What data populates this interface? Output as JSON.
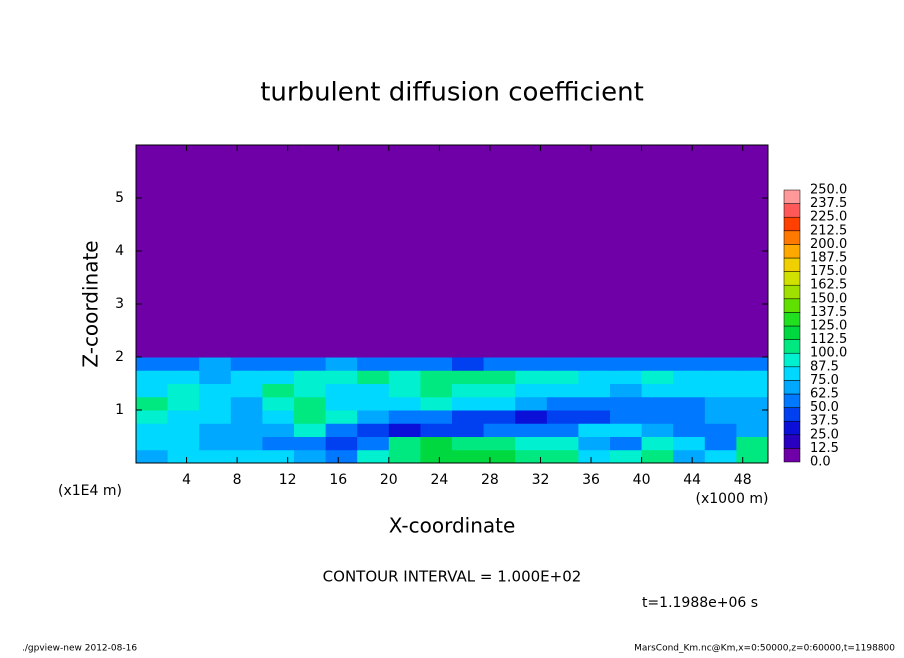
{
  "chart_data": {
    "type": "contour",
    "title": "turbulent diffusion coefficient",
    "x_label": "X-coordinate",
    "y_label": "Z-coordinate",
    "x_unit": "(x1000 m)",
    "y_unit": "(x1E4 m)",
    "annotation": "CONTOUR INTERVAL = 1.000E+02",
    "time_label": "t=1.1988e+06 s",
    "footer_left": "./gpview-new  2012-08-16",
    "footer_right": "MarsCond_Km.nc@Km,x=0:50000,z=0:60000,t=1198800",
    "xlim": [
      0,
      50
    ],
    "ylim": [
      0,
      6
    ],
    "xticks": [
      4,
      8,
      12,
      16,
      20,
      24,
      28,
      32,
      36,
      40,
      44,
      48
    ],
    "yticks": [
      1,
      2,
      3,
      4,
      5
    ],
    "x_edges": [
      0,
      2.5,
      5,
      7.5,
      10,
      12.5,
      15,
      17.5,
      20,
      22.5,
      25,
      27.5,
      30,
      32.5,
      35,
      37.5,
      40,
      42.5,
      45,
      47.5,
      50
    ],
    "y_edges": [
      0,
      0.25,
      0.5,
      0.75,
      1,
      1.25,
      1.5,
      1.75,
      2,
      6
    ],
    "values": [
      [
        70,
        75,
        80,
        85,
        80,
        70,
        60,
        90,
        110,
        115,
        120,
        115,
        110,
        100,
        80,
        90,
        110,
        70,
        80,
        110
      ],
      [
        75,
        80,
        70,
        65,
        60,
        50,
        45,
        60,
        100,
        115,
        110,
        100,
        95,
        90,
        70,
        60,
        95,
        80,
        60,
        100
      ],
      [
        80,
        75,
        70,
        65,
        70,
        90,
        60,
        40,
        35,
        40,
        45,
        50,
        55,
        60,
        75,
        80,
        70,
        60,
        55,
        70
      ],
      [
        90,
        85,
        75,
        70,
        80,
        100,
        90,
        70,
        60,
        50,
        45,
        40,
        35,
        40,
        45,
        50,
        55,
        60,
        65,
        70
      ],
      [
        100,
        95,
        80,
        70,
        90,
        110,
        80,
        75,
        80,
        90,
        85,
        80,
        70,
        60,
        55,
        50,
        55,
        60,
        65,
        70
      ],
      [
        85,
        90,
        80,
        75,
        100,
        95,
        80,
        85,
        90,
        100,
        95,
        90,
        85,
        80,
        75,
        70,
        75,
        80,
        75,
        80
      ],
      [
        80,
        85,
        70,
        75,
        80,
        90,
        95,
        100,
        90,
        100,
        105,
        100,
        95,
        90,
        85,
        85,
        90,
        85,
        80,
        85
      ],
      [
        50,
        60,
        65,
        60,
        55,
        60,
        70,
        60,
        55,
        50,
        45,
        50,
        55,
        60,
        50,
        55,
        60,
        55,
        50,
        55
      ],
      [
        5,
        5,
        5,
        5,
        5,
        5,
        5,
        5,
        5,
        5,
        5,
        5,
        5,
        5,
        5,
        5,
        5,
        5,
        5,
        5
      ]
    ],
    "levels": [
      {
        "value": 0,
        "label": "0.0"
      },
      {
        "value": 12.5,
        "label": "12.5"
      },
      {
        "value": 25,
        "label": "25.0"
      },
      {
        "value": 37.5,
        "label": "37.5"
      },
      {
        "value": 50,
        "label": "50.0"
      },
      {
        "value": 62.5,
        "label": "62.5"
      },
      {
        "value": 75,
        "label": "75.0"
      },
      {
        "value": 87.5,
        "label": "87.5"
      },
      {
        "value": 100,
        "label": "100.0"
      },
      {
        "value": 112.5,
        "label": "112.5"
      },
      {
        "value": 125,
        "label": "125.0"
      },
      {
        "value": 137.5,
        "label": "137.5"
      },
      {
        "value": 150,
        "label": "150.0"
      },
      {
        "value": 162.5,
        "label": "162.5"
      },
      {
        "value": 175,
        "label": "175.0"
      },
      {
        "value": 187.5,
        "label": "187.5"
      },
      {
        "value": 200,
        "label": "200.0"
      },
      {
        "value": 212.5,
        "label": "212.5"
      },
      {
        "value": 225,
        "label": "225.0"
      },
      {
        "value": 237.5,
        "label": "237.5"
      },
      {
        "value": 250,
        "label": "250.0"
      }
    ],
    "colors": [
      "#6f00a8",
      "#2a00c0",
      "#0a10d8",
      "#0040f0",
      "#0078ff",
      "#00a8ff",
      "#00d8ff",
      "#00f0d0",
      "#00e880",
      "#00d840",
      "#20e020",
      "#60e000",
      "#a0e000",
      "#d0e000",
      "#f0d000",
      "#ffa800",
      "#ff7800",
      "#ff4000",
      "#ff5858",
      "#ff9898"
    ]
  }
}
